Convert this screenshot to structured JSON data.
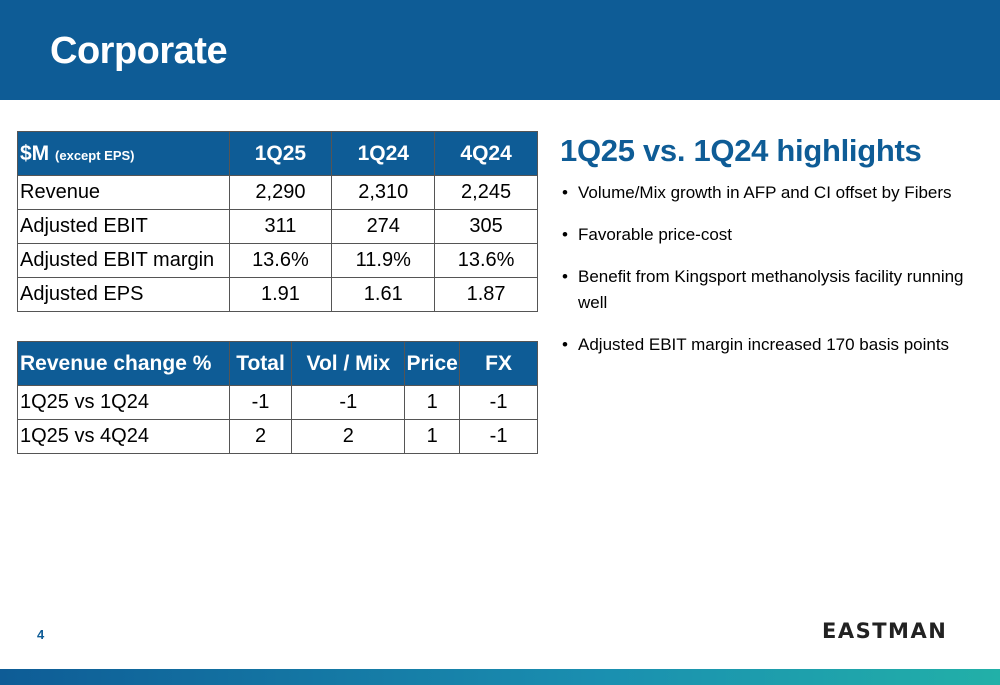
{
  "slide": {
    "title": "Corporate",
    "page_number": "4",
    "logo_text": "EASTMAN"
  },
  "financials": {
    "header": {
      "label_main": "$M",
      "label_sub": "(except EPS)",
      "cols": [
        "1Q25",
        "1Q24",
        "4Q24"
      ]
    },
    "rows": [
      {
        "label": "Revenue",
        "values": [
          "2,290",
          "2,310",
          "2,245"
        ]
      },
      {
        "label": "Adjusted EBIT",
        "values": [
          "311",
          "274",
          "305"
        ]
      },
      {
        "label": "Adjusted EBIT margin",
        "values": [
          "13.6%",
          "11.9%",
          "13.6%"
        ]
      },
      {
        "label": "Adjusted EPS",
        "values": [
          "1.91",
          "1.61",
          "1.87"
        ]
      }
    ]
  },
  "revenue_change": {
    "header": {
      "label": "Revenue change %",
      "cols": [
        "Total",
        "Vol / Mix",
        "Price",
        "FX"
      ]
    },
    "rows": [
      {
        "label": "1Q25 vs 1Q24",
        "values": [
          "-1",
          "-1",
          "1",
          "-1"
        ]
      },
      {
        "label": "1Q25 vs 4Q24",
        "values": [
          "2",
          "2",
          "1",
          "-1"
        ]
      }
    ]
  },
  "highlights": {
    "title": "1Q25 vs. 1Q24 highlights",
    "items": [
      "Volume/Mix growth in AFP and CI offset by Fibers",
      "Favorable price-cost",
      "Benefit from Kingsport methanolysis facility running well",
      "Adjusted EBIT margin increased 170 basis points"
    ]
  },
  "colors": {
    "brand_blue": "#0e5c96",
    "accent_teal": "#22b0a8"
  }
}
